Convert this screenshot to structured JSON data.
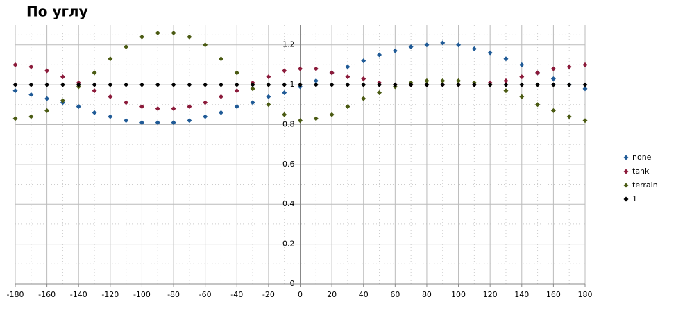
{
  "chart_data": {
    "type": "scatter",
    "title": "По углу",
    "x": [
      -180,
      -170,
      -160,
      -150,
      -140,
      -130,
      -120,
      -110,
      -100,
      -90,
      -80,
      -70,
      -60,
      -50,
      -40,
      -30,
      -20,
      -10,
      0,
      10,
      20,
      30,
      40,
      50,
      60,
      70,
      80,
      90,
      100,
      110,
      120,
      130,
      140,
      150,
      160,
      170,
      180
    ],
    "series": [
      {
        "name": "none",
        "color": "#1f5a96",
        "values": [
          0.97,
          0.95,
          0.93,
          0.91,
          0.89,
          0.86,
          0.84,
          0.82,
          0.81,
          0.81,
          0.81,
          0.82,
          0.84,
          0.86,
          0.89,
          0.91,
          0.94,
          0.96,
          0.99,
          1.02,
          1.06,
          1.09,
          1.12,
          1.15,
          1.17,
          1.19,
          1.2,
          1.21,
          1.2,
          1.18,
          1.16,
          1.13,
          1.1,
          1.06,
          1.03,
          1.0,
          0.98
        ]
      },
      {
        "name": "tank",
        "color": "#8b1a3a",
        "values": [
          1.1,
          1.09,
          1.07,
          1.04,
          1.01,
          0.97,
          0.94,
          0.91,
          0.89,
          0.88,
          0.88,
          0.89,
          0.91,
          0.94,
          0.97,
          1.01,
          1.04,
          1.07,
          1.08,
          1.08,
          1.06,
          1.04,
          1.03,
          1.01,
          1.0,
          1.0,
          1.0,
          1.0,
          1.0,
          1.0,
          1.01,
          1.02,
          1.04,
          1.06,
          1.08,
          1.09,
          1.1
        ]
      },
      {
        "name": "terrain",
        "color": "#4a5a12",
        "values": [
          0.83,
          0.84,
          0.87,
          0.92,
          0.99,
          1.06,
          1.13,
          1.19,
          1.24,
          1.26,
          1.26,
          1.24,
          1.2,
          1.13,
          1.06,
          0.98,
          0.9,
          0.85,
          0.82,
          0.83,
          0.85,
          0.89,
          0.93,
          0.96,
          0.99,
          1.01,
          1.02,
          1.02,
          1.02,
          1.01,
          1.0,
          0.97,
          0.94,
          0.9,
          0.87,
          0.84,
          0.82
        ]
      },
      {
        "name": "1",
        "color": "#000000",
        "values": [
          1,
          1,
          1,
          1,
          1,
          1,
          1,
          1,
          1,
          1,
          1,
          1,
          1,
          1,
          1,
          1,
          1,
          1,
          1,
          1,
          1,
          1,
          1,
          1,
          1,
          1,
          1,
          1,
          1,
          1,
          1,
          1,
          1,
          1,
          1,
          1,
          1
        ]
      }
    ],
    "xlim": [
      -180,
      180
    ],
    "xticks": [
      -180,
      -160,
      -140,
      -120,
      -100,
      -80,
      -60,
      -40,
      -20,
      0,
      20,
      40,
      60,
      80,
      100,
      120,
      140,
      160,
      180
    ],
    "ylim": [
      0,
      1.3
    ],
    "yticks": [
      0,
      0.2,
      0.4,
      0.6,
      0.8,
      1,
      1.2
    ],
    "grid": true,
    "legend": "right"
  }
}
